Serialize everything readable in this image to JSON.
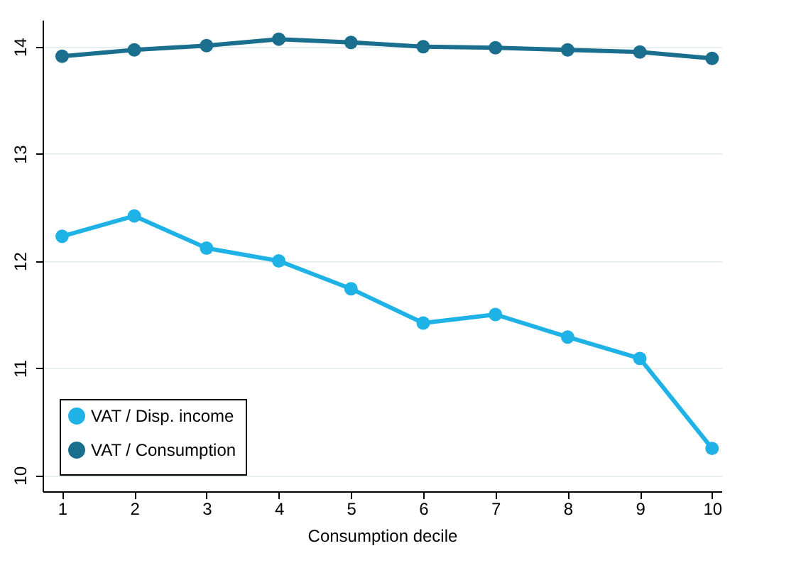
{
  "chart_data": {
    "type": "line",
    "xlabel": "Consumption decile",
    "x": [
      1,
      2,
      3,
      4,
      5,
      6,
      7,
      8,
      9,
      10
    ],
    "series": [
      {
        "name": "VAT / Disp. income",
        "color": "#1fb2e6",
        "values": [
          12.23,
          12.42,
          12.12,
          12.0,
          11.74,
          11.42,
          11.5,
          11.29,
          11.09,
          10.25
        ]
      },
      {
        "name": "VAT / Consumption",
        "color": "#1a6e8e",
        "values": [
          13.91,
          13.97,
          14.01,
          14.07,
          14.04,
          14.0,
          13.99,
          13.97,
          13.95,
          13.89
        ]
      }
    ],
    "xlim": [
      0.73,
      10.13
    ],
    "ylim": [
      9.85,
      14.25
    ],
    "xticks": [
      1,
      2,
      3,
      4,
      5,
      6,
      7,
      8,
      9,
      10
    ],
    "yticks": [
      10,
      11,
      12,
      13,
      14
    ],
    "grid": "y",
    "legend": "bottom left",
    "marker": "circle",
    "line_style": "solid"
  }
}
